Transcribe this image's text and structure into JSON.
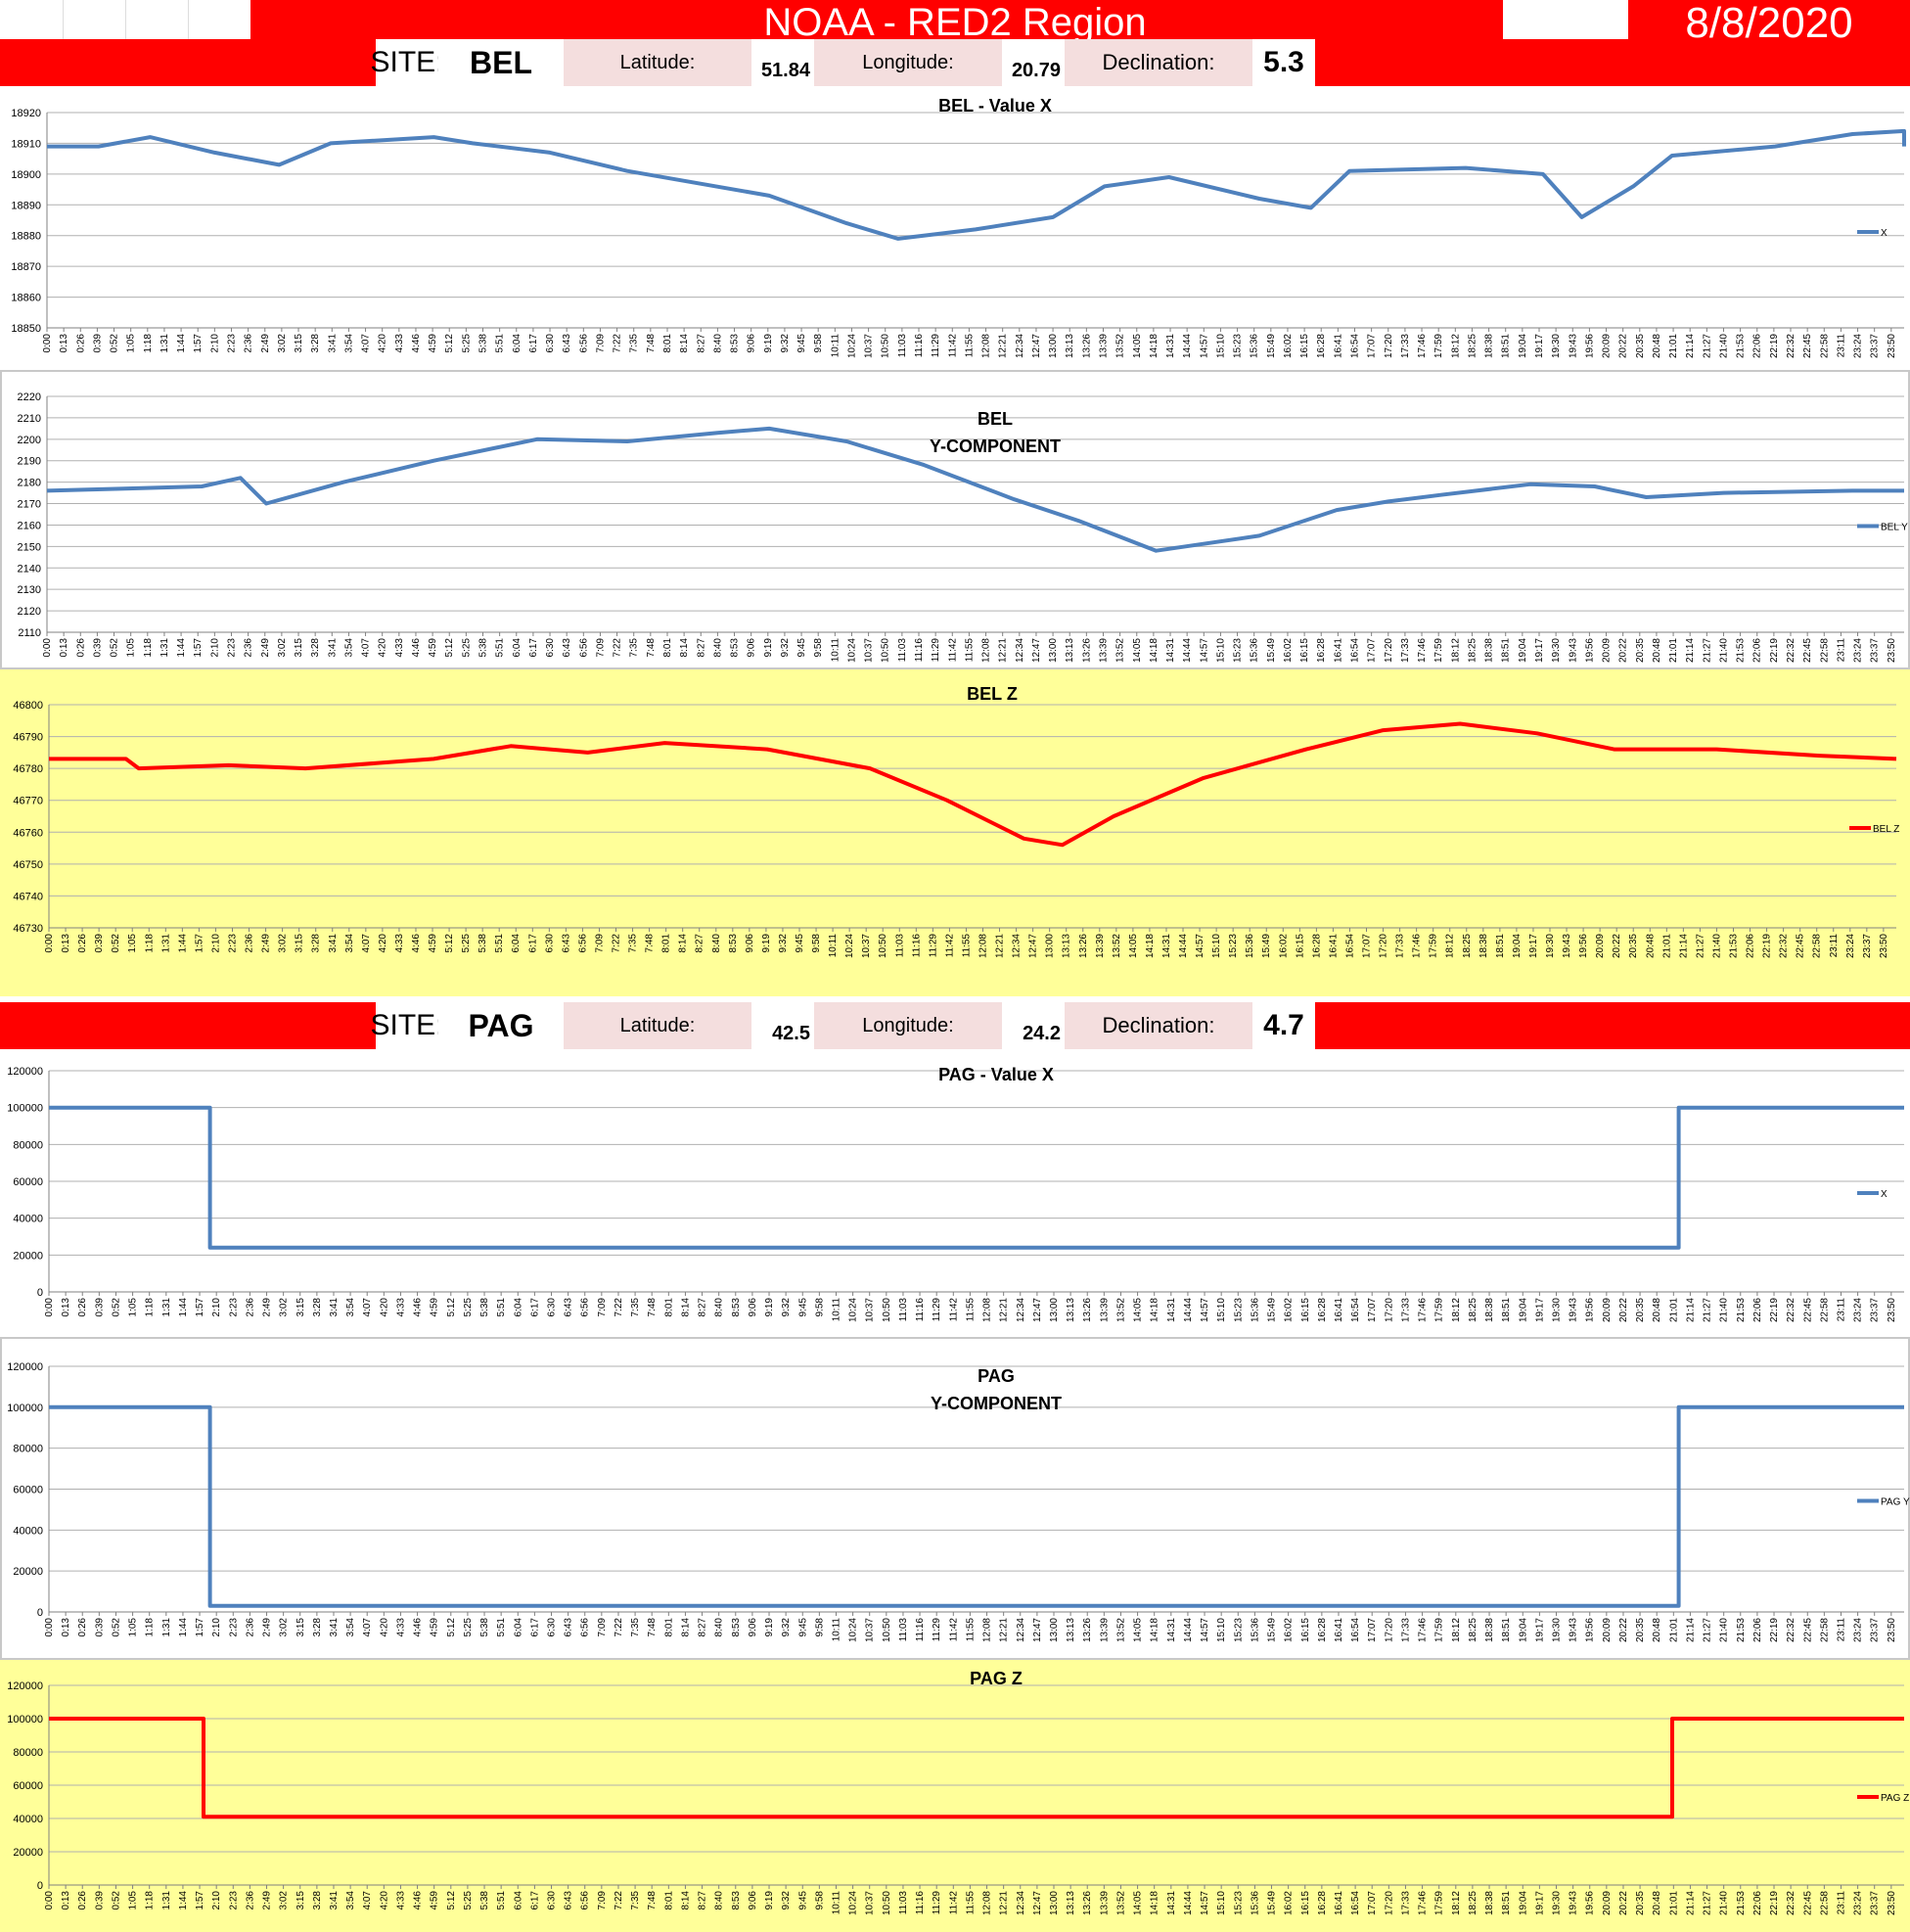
{
  "header": {
    "title": "NOAA - RED2 Region",
    "date": "8/8/2020"
  },
  "sites": [
    {
      "site_label": "SITE:",
      "site": "BEL",
      "lat_label": "Latitude:",
      "lat": "51.84",
      "lon_label": "Longitude:",
      "lon": "20.79",
      "dec_label": "Declination:",
      "dec": "5.3"
    },
    {
      "site_label": "SITE:",
      "site": "PAG",
      "lat_label": "Latitude:",
      "lat": "42.5",
      "lon_label": "Longitude:",
      "lon": "24.2",
      "dec_label": "Declination:",
      "dec": "4.7"
    }
  ],
  "chart_data": [
    {
      "type": "line",
      "title": [
        "BEL - Value X"
      ],
      "ylim": [
        18850,
        18920
      ],
      "yticks": [
        18850,
        18860,
        18870,
        18880,
        18890,
        18900,
        18910,
        18920
      ],
      "tick_step": 13,
      "grid": true,
      "legend": "right",
      "legend_text": "X",
      "bg": "#ffffff",
      "line_color": "#4f81bd",
      "series": [
        {
          "name": "X",
          "points": [
            [
              0,
              18909
            ],
            [
              40,
              18909
            ],
            [
              80,
              18912
            ],
            [
              130,
              18907
            ],
            [
              180,
              18903
            ],
            [
              220,
              18910
            ],
            [
              300,
              18912
            ],
            [
              330,
              18910
            ],
            [
              390,
              18907
            ],
            [
              450,
              18901
            ],
            [
              560,
              18893
            ],
            [
              620,
              18884
            ],
            [
              660,
              18879
            ],
            [
              720,
              18882
            ],
            [
              780,
              18886
            ],
            [
              820,
              18896
            ],
            [
              870,
              18899
            ],
            [
              940,
              18892
            ],
            [
              980,
              18889
            ],
            [
              1010,
              18901
            ],
            [
              1100,
              18902
            ],
            [
              1160,
              18900
            ],
            [
              1190,
              18886
            ],
            [
              1230,
              18896
            ],
            [
              1260,
              18906
            ],
            [
              1340,
              18909
            ],
            [
              1400,
              18913
            ],
            [
              1440,
              18914
            ],
            [
              1470,
              18910
            ],
            [
              1520,
              18909
            ],
            [
              1560,
              18909
            ]
          ]
        }
      ]
    },
    {
      "type": "line",
      "title": [
        "BEL",
        "Y-COMPONENT"
      ],
      "ylim": [
        2110,
        2220
      ],
      "yticks": [
        2110,
        2120,
        2130,
        2140,
        2150,
        2160,
        2170,
        2180,
        2190,
        2200,
        2210,
        2220
      ],
      "tick_step": 13,
      "grid": true,
      "legend": "right",
      "legend_text": "BEL Y",
      "bg": "#ffffff",
      "line_color": "#4f81bd",
      "series": [
        {
          "name": "BEL Y",
          "points": [
            [
              0,
              2176
            ],
            [
              60,
              2177
            ],
            [
              120,
              2178
            ],
            [
              150,
              2182
            ],
            [
              170,
              2170
            ],
            [
              230,
              2180
            ],
            [
              300,
              2190
            ],
            [
              380,
              2200
            ],
            [
              450,
              2199
            ],
            [
              520,
              2203
            ],
            [
              560,
              2205
            ],
            [
              620,
              2199
            ],
            [
              680,
              2188
            ],
            [
              750,
              2172
            ],
            [
              800,
              2162
            ],
            [
              860,
              2148
            ],
            [
              940,
              2155
            ],
            [
              1000,
              2167
            ],
            [
              1040,
              2171
            ],
            [
              1080,
              2174
            ],
            [
              1150,
              2179
            ],
            [
              1200,
              2178
            ],
            [
              1240,
              2173
            ],
            [
              1300,
              2175
            ],
            [
              1400,
              2176
            ],
            [
              1560,
              2176
            ]
          ]
        }
      ]
    },
    {
      "type": "line",
      "title": [
        "BEL Z"
      ],
      "ylim": [
        46730,
        46800
      ],
      "yticks": [
        46730,
        46740,
        46750,
        46760,
        46770,
        46780,
        46790,
        46800
      ],
      "tick_step": 13,
      "grid": true,
      "legend": "right",
      "legend_text": "BEL Z",
      "bg": "#ffff99",
      "line_color": "#ff0000",
      "series": [
        {
          "name": "BEL Z",
          "points": [
            [
              0,
              46783
            ],
            [
              60,
              46783
            ],
            [
              70,
              46780
            ],
            [
              140,
              46781
            ],
            [
              200,
              46780
            ],
            [
              300,
              46783
            ],
            [
              360,
              46787
            ],
            [
              420,
              46785
            ],
            [
              480,
              46788
            ],
            [
              560,
              46786
            ],
            [
              640,
              46780
            ],
            [
              700,
              46770
            ],
            [
              760,
              46758
            ],
            [
              790,
              46756
            ],
            [
              830,
              46765
            ],
            [
              900,
              46777
            ],
            [
              980,
              46786
            ],
            [
              1040,
              46792
            ],
            [
              1100,
              46794
            ],
            [
              1160,
              46791
            ],
            [
              1220,
              46786
            ],
            [
              1300,
              46786
            ],
            [
              1380,
              46784
            ],
            [
              1440,
              46783
            ],
            [
              1560,
              46783
            ]
          ]
        }
      ]
    },
    {
      "type": "line",
      "title": [
        "PAG - Value X"
      ],
      "ylim": [
        0,
        120000
      ],
      "yticks": [
        0,
        20000,
        40000,
        60000,
        80000,
        100000,
        120000
      ],
      "tick_step": 13,
      "grid": true,
      "legend": "right",
      "legend_text": "X",
      "bg": "#ffffff",
      "line_color": "#4f81bd",
      "series": [
        {
          "name": "X",
          "points": [
            [
              0,
              100000
            ],
            [
              125,
              100000
            ],
            [
              125,
              24000
            ],
            [
              1265,
              24000
            ],
            [
              1265,
              100000
            ],
            [
              1560,
              100000
            ]
          ]
        }
      ]
    },
    {
      "type": "line",
      "title": [
        "PAG",
        "Y-COMPONENT"
      ],
      "ylim": [
        0,
        120000
      ],
      "yticks": [
        0,
        20000,
        40000,
        60000,
        80000,
        100000,
        120000
      ],
      "tick_step": 13,
      "grid": true,
      "legend": "right",
      "legend_text": "PAG Y",
      "bg": "#ffffff",
      "line_color": "#4f81bd",
      "series": [
        {
          "name": "PAG Y",
          "points": [
            [
              0,
              100000
            ],
            [
              125,
              100000
            ],
            [
              125,
              3000
            ],
            [
              1265,
              3000
            ],
            [
              1265,
              100000
            ],
            [
              1560,
              100000
            ]
          ]
        }
      ]
    },
    {
      "type": "line",
      "title": [
        "PAG Z"
      ],
      "ylim": [
        0,
        120000
      ],
      "yticks": [
        0,
        20000,
        40000,
        60000,
        80000,
        100000,
        120000
      ],
      "tick_step": 13,
      "grid": true,
      "legend": "right",
      "legend_text": "PAG Z",
      "bg": "#ffff99",
      "line_color": "#ff0000",
      "series": [
        {
          "name": "PAG Z",
          "points": [
            [
              0,
              100000
            ],
            [
              120,
              100000
            ],
            [
              120,
              41000
            ],
            [
              1260,
              41000
            ],
            [
              1260,
              100000
            ],
            [
              1560,
              100000
            ]
          ]
        }
      ]
    }
  ]
}
